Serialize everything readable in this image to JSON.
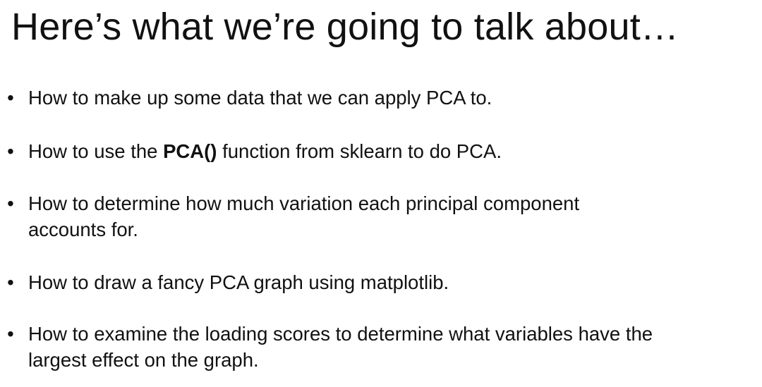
{
  "slide": {
    "title": "Here’s what we’re going to talk about…",
    "bullets": [
      {
        "lines": [
          "How to make up some data that we can apply PCA to."
        ]
      },
      {
        "prefix": "How to use the ",
        "code": "PCA()",
        "suffix": " function from sklearn to do PCA."
      },
      {
        "lines": [
          "How to determine how much variation each principal component",
          "accounts for."
        ]
      },
      {
        "lines": [
          "How to draw a fancy PCA graph using matplotlib."
        ]
      },
      {
        "lines": [
          "How to examine the loading scores to determine what variables have the",
          "largest effect on the graph."
        ]
      }
    ],
    "bullet_symbol": "•"
  }
}
